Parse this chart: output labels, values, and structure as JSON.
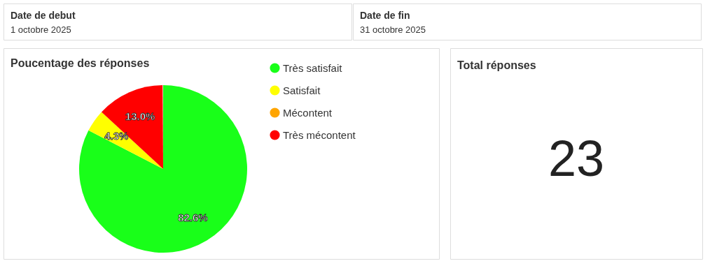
{
  "chart_data": [
    {
      "type": "other",
      "title": "Date de debut",
      "annotations": [
        "1 octobre 2025"
      ]
    },
    {
      "type": "other",
      "title": "Date de fin",
      "annotations": [
        "31 octobre 2025"
      ]
    },
    {
      "type": "pie",
      "title": "Poucentage des réponses",
      "categories": [
        "Très satisfait",
        "Satisfait",
        "Mécontent",
        "Très mécontent"
      ],
      "values": [
        82.6,
        4.3,
        0,
        13.0
      ],
      "colors": [
        "#19ff19",
        "#ffff00",
        "#ffa500",
        "#ff0000"
      ],
      "value_labels": [
        "82.6%",
        "4.3%",
        null,
        "13.0%"
      ],
      "legend": "right"
    },
    {
      "type": "other",
      "title": "Total réponses",
      "annotations": [
        "23"
      ]
    }
  ]
}
